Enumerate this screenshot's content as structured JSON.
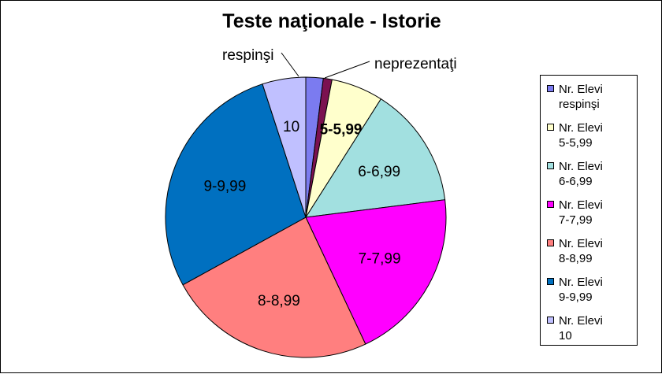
{
  "chart_data": {
    "type": "pie",
    "title": "Teste naţionale - Istorie",
    "slices": [
      {
        "legend": "Nr. Elevi respinşi",
        "label": "respinşi",
        "value": 2,
        "color": "#7b7bf0",
        "label_bold": false
      },
      {
        "legend": "",
        "label": "neprezentaţi",
        "value": 1,
        "color": "#7b1150",
        "label_bold": false
      },
      {
        "legend": "Nr. Elevi 5-5,99",
        "label": "5-5,99",
        "value": 6,
        "color": "#ffffcc",
        "label_bold": true
      },
      {
        "legend": "Nr. Elevi 6-6,99",
        "label": "6-6,99",
        "value": 14,
        "color": "#a2e0e0",
        "label_bold": false
      },
      {
        "legend": "Nr. Elevi 7-7,99",
        "label": "7-7,99",
        "value": 20,
        "color": "#ff00ff",
        "label_bold": false
      },
      {
        "legend": "Nr. Elevi 8-8,99",
        "label": "8-8,99",
        "value": 24,
        "color": "#ff7f7f",
        "label_bold": false
      },
      {
        "legend": "Nr. Elevi 9-9,99",
        "label": "9-9,99",
        "value": 28,
        "color": "#0070c0",
        "label_bold": false
      },
      {
        "legend": "Nr. Elevi 10",
        "label": "10",
        "value": 5,
        "color": "#c0c0ff",
        "label_bold": false
      }
    ],
    "legend_position": "right"
  },
  "legend_items": [
    {
      "line1": "Nr. Elevi",
      "line2": "respinşi",
      "color": "#7b7bf0"
    },
    {
      "line1": "Nr. Elevi",
      "line2": "5-5,99",
      "color": "#ffffcc"
    },
    {
      "line1": "Nr. Elevi",
      "line2": "6-6,99",
      "color": "#a2e0e0"
    },
    {
      "line1": "Nr. Elevi",
      "line2": "7-7,99",
      "color": "#ff00ff"
    },
    {
      "line1": "Nr. Elevi",
      "line2": "8-8,99",
      "color": "#ff7f7f"
    },
    {
      "line1": "Nr. Elevi",
      "line2": "9-9,99",
      "color": "#0070c0"
    },
    {
      "line1": "Nr. Elevi",
      "line2": "10",
      "color": "#c0c0ff"
    }
  ]
}
